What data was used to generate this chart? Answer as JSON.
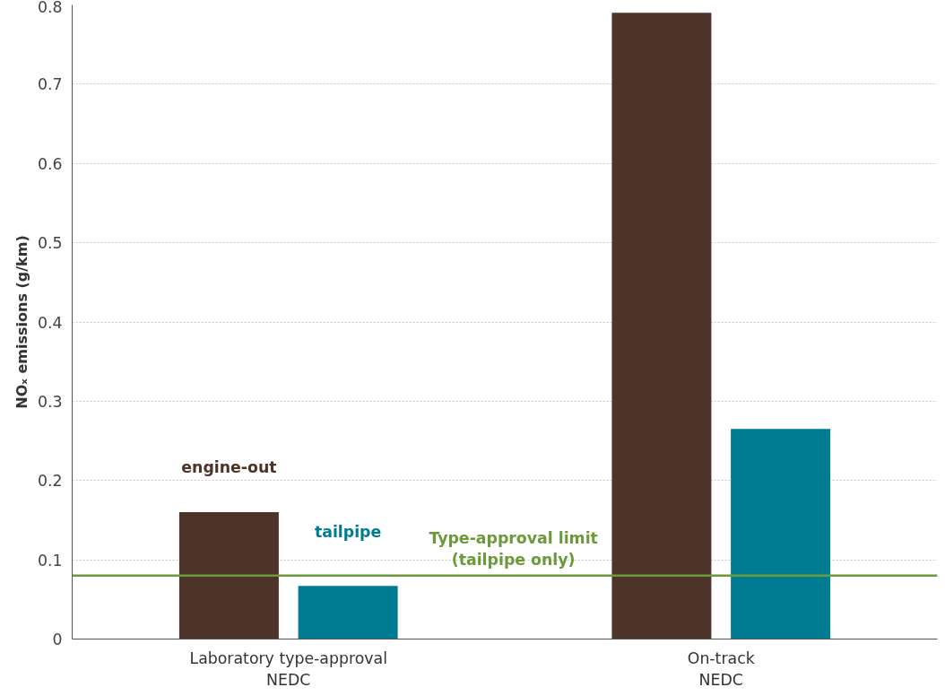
{
  "chart_data": {
    "type": "bar",
    "ylabel": "NOₓ emissions (g/km)",
    "categories": [
      "Laboratory type-approval\nNEDC",
      "On-track\nNEDC"
    ],
    "series": [
      {
        "name": "engine-out",
        "color": "#4e3329",
        "values": [
          0.16,
          0.79
        ]
      },
      {
        "name": "tailpipe",
        "color": "#007c92",
        "values": [
          0.067,
          0.265
        ]
      }
    ],
    "ylim": [
      0,
      0.8
    ],
    "yticks": [
      0,
      0.1,
      0.2,
      0.3,
      0.4,
      0.5,
      0.6,
      0.7,
      0.8
    ],
    "grid": "y",
    "ref_lines": [
      {
        "axis": "y",
        "value": 0.08,
        "label": "Type-approval limit\n(tailpipe only)",
        "color": "#6b9a3a"
      }
    ]
  }
}
